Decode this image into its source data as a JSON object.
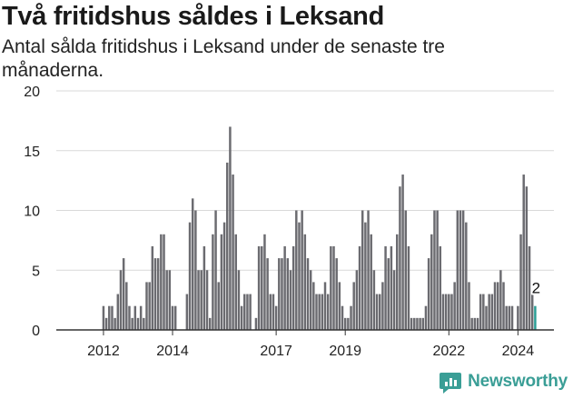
{
  "header": {
    "title": "Två fritidshus såldes i Leksand",
    "subtitle": "Antal sålda fritidshus i Leksand under de senaste tre månaderna."
  },
  "brand": {
    "name": "Newsworthy",
    "icon": "newsworthy-logo-icon",
    "color": "#3a9e96"
  },
  "colors": {
    "bar": "#6b6b70",
    "highlight": "#2a9d94",
    "grid": "#d9d9d9",
    "axis": "#333333"
  },
  "chart_data": {
    "type": "bar",
    "x_unit": "month",
    "start": "2012-01",
    "ylim": [
      0,
      20
    ],
    "yticks": [
      0,
      5,
      10,
      15,
      20
    ],
    "xticks": [
      "2012",
      "2014",
      "2017",
      "2019",
      "2022",
      "2024"
    ],
    "grid": true,
    "values": [
      2,
      1,
      2,
      2,
      1,
      3,
      5,
      6,
      4,
      2,
      1,
      2,
      1,
      2,
      1,
      4,
      4,
      7,
      6,
      6,
      8,
      8,
      5,
      5,
      2,
      2,
      0,
      0,
      0,
      3,
      9,
      11,
      10,
      5,
      5,
      7,
      5,
      1,
      8,
      10,
      4,
      8,
      9,
      14,
      17,
      13,
      8,
      5,
      2,
      3,
      3,
      3,
      0,
      1,
      7,
      7,
      8,
      6,
      3,
      3,
      2,
      6,
      6,
      7,
      6,
      5,
      7,
      10,
      9,
      10,
      8,
      6,
      5,
      4,
      3,
      3,
      3,
      4,
      3,
      7,
      7,
      6,
      4,
      2,
      1,
      1,
      2,
      4,
      5,
      7,
      10,
      9,
      10,
      8,
      5,
      3,
      3,
      4,
      7,
      6,
      7,
      5,
      8,
      12,
      13,
      10,
      7,
      1,
      1,
      1,
      1,
      1,
      2,
      6,
      8,
      10,
      10,
      7,
      3,
      3,
      3,
      3,
      4,
      10,
      10,
      10,
      9,
      4,
      1,
      1,
      1,
      3,
      3,
      2,
      3,
      3,
      4,
      4,
      5,
      4,
      2,
      2,
      2,
      0,
      2,
      8,
      13,
      12,
      7,
      3,
      2
    ],
    "highlight_last": true,
    "annotation": {
      "label": "2",
      "value": 2
    }
  }
}
